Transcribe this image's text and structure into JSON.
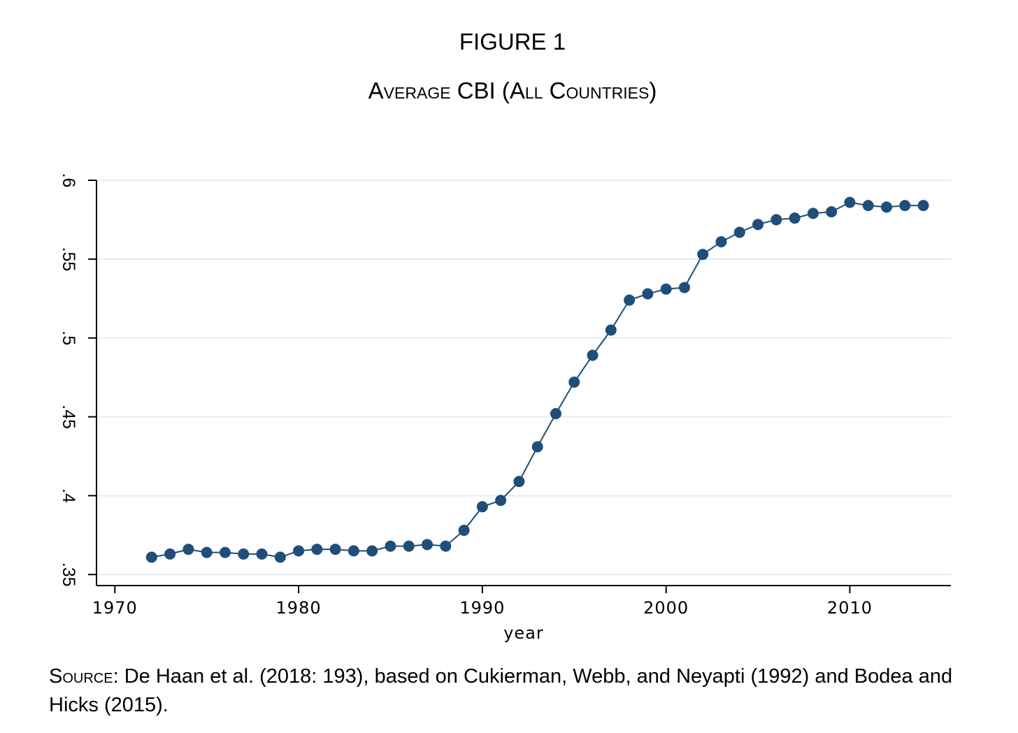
{
  "figure": {
    "label": "FIGURE 1",
    "title": "Average CBI (All Countries)"
  },
  "source": {
    "lead": "Source",
    "text": ": De Haan et al. (2018: 193), based on Cukierman, Webb, and Neyapti (1992) and Bodea and Hicks (2015)."
  },
  "chart_data": {
    "type": "line",
    "title": "",
    "xlabel": "year",
    "ylabel": "",
    "xlim": [
      1969,
      2015.5
    ],
    "ylim": [
      0.343,
      0.6
    ],
    "xticks": [
      1970,
      1980,
      1990,
      2000,
      2010
    ],
    "xtick_labels": [
      "1970",
      "1980",
      "1990",
      "2000",
      "2010"
    ],
    "yticks": [
      0.35,
      0.4,
      0.45,
      0.5,
      0.55,
      0.6
    ],
    "ytick_labels": [
      ".35",
      ".4",
      ".45",
      ".5",
      ".55",
      ".6"
    ],
    "grid": true,
    "legend": false,
    "series": [
      {
        "color": "#1f4e79",
        "marker": "circle",
        "x": [
          1972,
          1973,
          1974,
          1975,
          1976,
          1977,
          1978,
          1979,
          1980,
          1981,
          1982,
          1983,
          1984,
          1985,
          1986,
          1987,
          1988,
          1989,
          1990,
          1991,
          1992,
          1993,
          1994,
          1995,
          1996,
          1997,
          1998,
          1999,
          2000,
          2001,
          2002,
          2003,
          2004,
          2005,
          2006,
          2007,
          2008,
          2009,
          2010,
          2011,
          2012,
          2013,
          2014
        ],
        "y": [
          0.361,
          0.363,
          0.366,
          0.364,
          0.364,
          0.363,
          0.363,
          0.361,
          0.365,
          0.366,
          0.366,
          0.365,
          0.365,
          0.368,
          0.368,
          0.369,
          0.368,
          0.378,
          0.393,
          0.397,
          0.409,
          0.431,
          0.452,
          0.472,
          0.489,
          0.505,
          0.524,
          0.528,
          0.531,
          0.532,
          0.553,
          0.561,
          0.567,
          0.572,
          0.575,
          0.576,
          0.579,
          0.58,
          0.586,
          0.584,
          0.583,
          0.584,
          0.584
        ]
      }
    ]
  },
  "colors": {
    "series": "#1f4e79",
    "grid": "#e3ecf0",
    "axis": "#000000"
  }
}
